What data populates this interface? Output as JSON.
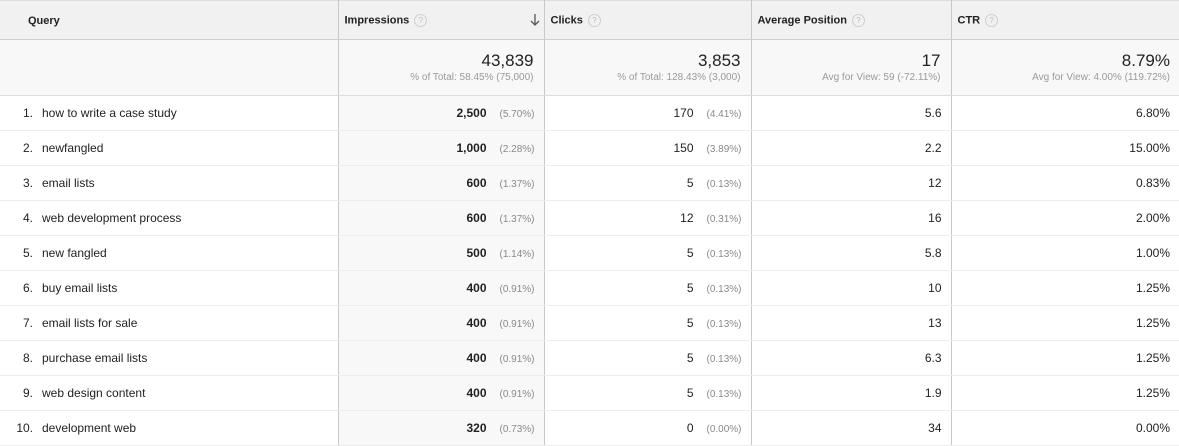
{
  "header": {
    "query": "Query",
    "impressions": "Impressions",
    "clicks": "Clicks",
    "average_position": "Average Position",
    "ctr": "CTR",
    "help_glyph": "?"
  },
  "totals": {
    "impressions": {
      "value": "43,839",
      "sub": "% of Total: 58.45% (75,000)"
    },
    "clicks": {
      "value": "3,853",
      "sub": "% of Total: 128.43% (3,000)"
    },
    "average_position": {
      "value": "17",
      "sub": "Avg for View: 59 (-72.11%)"
    },
    "ctr": {
      "value": "8.79%",
      "sub": "Avg for View: 4.00% (119.72%)"
    }
  },
  "rows": [
    {
      "num": "1.",
      "query": "how to write a case study",
      "impressions": "2,500",
      "impressions_pct": "(5.70%)",
      "clicks": "170",
      "clicks_pct": "(4.41%)",
      "position": "5.6",
      "ctr": "6.80%"
    },
    {
      "num": "2.",
      "query": "newfangled",
      "impressions": "1,000",
      "impressions_pct": "(2.28%)",
      "clicks": "150",
      "clicks_pct": "(3.89%)",
      "position": "2.2",
      "ctr": "15.00%"
    },
    {
      "num": "3.",
      "query": "email lists",
      "impressions": "600",
      "impressions_pct": "(1.37%)",
      "clicks": "5",
      "clicks_pct": "(0.13%)",
      "position": "12",
      "ctr": "0.83%"
    },
    {
      "num": "4.",
      "query": "web development process",
      "impressions": "600",
      "impressions_pct": "(1.37%)",
      "clicks": "12",
      "clicks_pct": "(0.31%)",
      "position": "16",
      "ctr": "2.00%"
    },
    {
      "num": "5.",
      "query": "new fangled",
      "impressions": "500",
      "impressions_pct": "(1.14%)",
      "clicks": "5",
      "clicks_pct": "(0.13%)",
      "position": "5.8",
      "ctr": "1.00%"
    },
    {
      "num": "6.",
      "query": "buy email lists",
      "impressions": "400",
      "impressions_pct": "(0.91%)",
      "clicks": "5",
      "clicks_pct": "(0.13%)",
      "position": "10",
      "ctr": "1.25%"
    },
    {
      "num": "7.",
      "query": "email lists for sale",
      "impressions": "400",
      "impressions_pct": "(0.91%)",
      "clicks": "5",
      "clicks_pct": "(0.13%)",
      "position": "13",
      "ctr": "1.25%"
    },
    {
      "num": "8.",
      "query": "purchase email lists",
      "impressions": "400",
      "impressions_pct": "(0.91%)",
      "clicks": "5",
      "clicks_pct": "(0.13%)",
      "position": "6.3",
      "ctr": "1.25%"
    },
    {
      "num": "9.",
      "query": "web design content",
      "impressions": "400",
      "impressions_pct": "(0.91%)",
      "clicks": "5",
      "clicks_pct": "(0.13%)",
      "position": "1.9",
      "ctr": "1.25%"
    },
    {
      "num": "10.",
      "query": "development web",
      "impressions": "320",
      "impressions_pct": "(0.73%)",
      "clicks": "0",
      "clicks_pct": "(0.00%)",
      "position": "34",
      "ctr": "0.00%"
    }
  ]
}
